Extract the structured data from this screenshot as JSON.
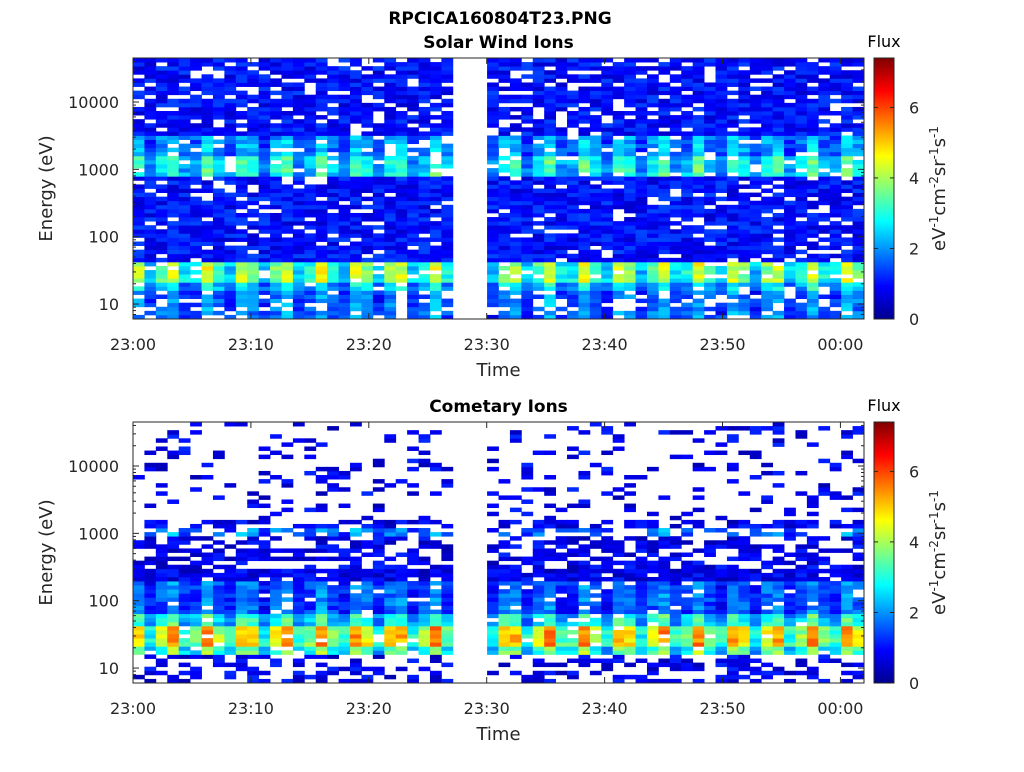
{
  "figure_title": "RPCICA160804T23.PNG",
  "chart_data": [
    {
      "type": "heatmap",
      "title": "Solar Wind Ions",
      "xlabel": "Time",
      "ylabel": "Energy (eV)",
      "x_ticks": [
        "23:00",
        "23:10",
        "23:20",
        "23:30",
        "23:40",
        "23:50",
        "00:00"
      ],
      "x_range_minutes": [
        0,
        62
      ],
      "y_scale": "log",
      "y_ticks": [
        10,
        100,
        1000,
        10000
      ],
      "y_tick_labels": [
        "10",
        "100",
        "1000",
        "10000"
      ],
      "y_range": [
        6,
        45000
      ],
      "data_gap_minutes": [
        27.5,
        30.5
      ],
      "colorbar": {
        "title": "Flux",
        "label": "eV-1cm-2sr-1s-1",
        "ticks": [
          0,
          2,
          4,
          6
        ],
        "tick_labels": [
          "0",
          "2",
          "4",
          "6"
        ],
        "range": [
          0,
          7.4
        ],
        "colormap": "jet"
      },
      "bands": [
        {
          "energy_range_eV": [
            20,
            45
          ],
          "flux": 4.5
        },
        {
          "energy_range_eV": [
            800,
            1600
          ],
          "flux": 3.5
        },
        {
          "energy_range_eV": [
            1600,
            3000
          ],
          "flux": 2.5
        },
        {
          "energy_range_eV": [
            15,
            20
          ],
          "flux": 3.0
        },
        {
          "energy_range_eV": [
            6,
            15
          ],
          "flux": 2.2
        }
      ],
      "background_flux": 1.0
    },
    {
      "type": "heatmap",
      "title": "Cometary Ions",
      "xlabel": "Time",
      "ylabel": "Energy (eV)",
      "x_ticks": [
        "23:00",
        "23:10",
        "23:20",
        "23:30",
        "23:40",
        "23:50",
        "00:00"
      ],
      "x_range_minutes": [
        0,
        62
      ],
      "y_scale": "log",
      "y_ticks": [
        10,
        100,
        1000,
        10000
      ],
      "y_tick_labels": [
        "10",
        "100",
        "1000",
        "10000"
      ],
      "y_range": [
        6,
        45000
      ],
      "data_gap_minutes": [
        27.5,
        30.5
      ],
      "colorbar": {
        "title": "Flux",
        "label": "eV-1cm-2sr-1s-1",
        "ticks": [
          0,
          2,
          4,
          6
        ],
        "tick_labels": [
          "0",
          "2",
          "4",
          "6"
        ],
        "range": [
          0,
          7.4
        ],
        "colormap": "jet"
      },
      "bands": [
        {
          "energy_range_eV": [
            22,
            40
          ],
          "flux": 5.6
        },
        {
          "energy_range_eV": [
            17,
            22
          ],
          "flux": 4.0
        },
        {
          "energy_range_eV": [
            40,
            60
          ],
          "flux": 3.5
        },
        {
          "energy_range_eV": [
            60,
            200
          ],
          "flux": 2.0
        },
        {
          "energy_range_eV": [
            900,
            1200
          ],
          "flux": 2.2
        }
      ],
      "background_flux": 0.8
    }
  ]
}
